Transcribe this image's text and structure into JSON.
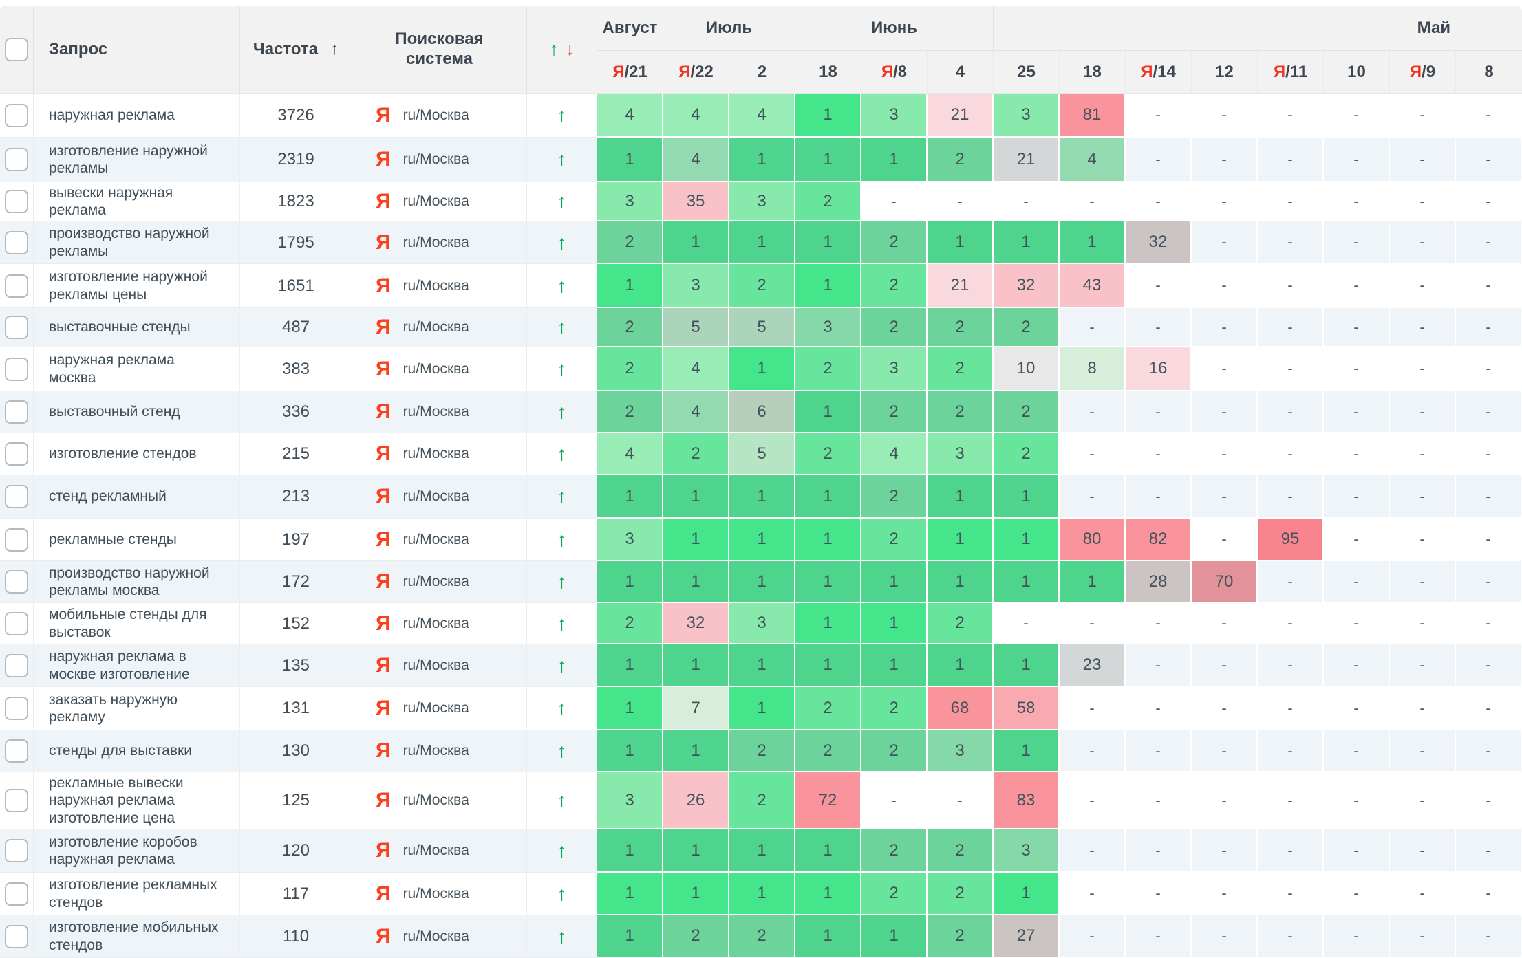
{
  "palette_note": "heatmap color tokens used by cells",
  "colors": {
    "accent_green": "#0ba653",
    "accent_red": "#ee4130",
    "yandex_red": "#fc3f1d",
    "heat_green_strong": "#45e58c",
    "heat_pink_strong": "#f8858d",
    "even_row_bg": "#eef4f8",
    "header_bg": "#f2f2f2"
  },
  "header": {
    "columns": {
      "query": "Запрос",
      "frequency": "Частота",
      "freq_sort_arrow": "↑",
      "engine": "Поисковая система",
      "trend_up": "↑",
      "trend_down": "↓"
    },
    "yandex_letter": "Я",
    "month_groups": [
      {
        "label": "Август",
        "colspan": 1,
        "offset": false
      },
      {
        "label": "Июль",
        "colspan": 2,
        "offset": false
      },
      {
        "label": "Июнь",
        "colspan": 3,
        "offset": false
      },
      {
        "label": "Май",
        "colspan": 8,
        "offset": true
      }
    ],
    "days": [
      {
        "ya": true,
        "day": "21"
      },
      {
        "ya": true,
        "day": "22"
      },
      {
        "ya": false,
        "day": "2"
      },
      {
        "ya": false,
        "day": "18"
      },
      {
        "ya": true,
        "day": "8"
      },
      {
        "ya": false,
        "day": "4"
      },
      {
        "ya": false,
        "day": "25"
      },
      {
        "ya": false,
        "day": "18"
      },
      {
        "ya": true,
        "day": "14"
      },
      {
        "ya": false,
        "day": "12"
      },
      {
        "ya": true,
        "day": "11"
      },
      {
        "ya": false,
        "day": "10"
      },
      {
        "ya": true,
        "day": "9"
      },
      {
        "ya": false,
        "day": "8"
      }
    ]
  },
  "rows": [
    {
      "query": "наружная реклама",
      "frequency": "3726",
      "engine": "ru/Москва",
      "trend": "↑",
      "h": 64,
      "cells": [
        "4:g4",
        "4:g4",
        "4:g4",
        "1:g1",
        "3:g3",
        "21:pk1",
        "3:g3",
        "81:pk4",
        "-",
        "-",
        "-",
        "-",
        "-",
        "-"
      ]
    },
    {
      "query": "изготовление наружной рекламы",
      "frequency": "2319",
      "engine": "ru/Москва",
      "trend": "↑",
      "h": 65,
      "cells": [
        "1:g1",
        "4:g4",
        "1:g1",
        "1:g1",
        "1:g1",
        "2:g2",
        "21:gray",
        "4:g4",
        "-",
        "-",
        "-",
        "-",
        "-",
        "-"
      ]
    },
    {
      "query": "вывески наружная реклама",
      "frequency": "1823",
      "engine": "ru/Москва",
      "trend": "↑",
      "h": 57,
      "cells": [
        "3:g3",
        "35:pk2",
        "3:g3",
        "2:g2",
        "-",
        "-",
        "-",
        "-",
        "-",
        "-",
        "-",
        "-",
        "-",
        "-"
      ]
    },
    {
      "query": "производство наружной рекламы",
      "frequency": "1795",
      "engine": "ru/Москва",
      "trend": "↑",
      "h": 62,
      "cells": [
        "2:g2",
        "1:g1",
        "1:g1",
        "1:g1",
        "2:g2",
        "1:g1",
        "1:g1",
        "1:g1",
        "32:gpk",
        "-",
        "-",
        "-",
        "-",
        "-"
      ]
    },
    {
      "query": "изготовление наружной рекламы цены",
      "frequency": "1651",
      "engine": "ru/Москва",
      "trend": "↑",
      "h": 64,
      "cells": [
        "1:g1",
        "3:g3",
        "2:g2",
        "1:g1",
        "2:g2",
        "21:pk1",
        "32:pk2",
        "43:pk2",
        "-",
        "-",
        "-",
        "-",
        "-",
        "-"
      ]
    },
    {
      "query": "выставочные стенды",
      "frequency": "487",
      "engine": "ru/Москва",
      "trend": "↑",
      "h": 57,
      "cells": [
        "2:g2",
        "5:g5",
        "5:g5",
        "3:g3",
        "2:g2",
        "2:g2",
        "2:g2",
        "-",
        "-",
        "-",
        "-",
        "-",
        "-",
        "-"
      ]
    },
    {
      "query": "наружная реклама москва",
      "frequency": "383",
      "engine": "ru/Москва",
      "trend": "↑",
      "h": 64,
      "cells": [
        "2:g2",
        "4:g4",
        "1:g1",
        "2:g2",
        "3:g3",
        "2:g2",
        "10:gray",
        "8:g7",
        "16:pk1",
        "-",
        "-",
        "-",
        "-",
        "-"
      ]
    },
    {
      "query": "выставочный стенд",
      "frequency": "336",
      "engine": "ru/Москва",
      "trend": "↑",
      "h": 61,
      "cells": [
        "2:g2",
        "4:g4",
        "6:g6",
        "1:g1",
        "2:g2",
        "2:g2",
        "2:g2",
        "-",
        "-",
        "-",
        "-",
        "-",
        "-",
        "-"
      ]
    },
    {
      "query": "изготовление стендов",
      "frequency": "215",
      "engine": "ru/Москва",
      "trend": "↑",
      "h": 61,
      "cells": [
        "4:g4",
        "2:g2",
        "5:g5",
        "2:g2",
        "4:g4",
        "3:g3",
        "2:g2",
        "-",
        "-",
        "-",
        "-",
        "-",
        "-",
        "-"
      ]
    },
    {
      "query": "стенд рекламный",
      "frequency": "213",
      "engine": "ru/Москва",
      "trend": "↑",
      "h": 63,
      "cells": [
        "1:g1",
        "1:g1",
        "1:g1",
        "1:g1",
        "2:g2",
        "1:g1",
        "1:g1",
        "-",
        "-",
        "-",
        "-",
        "-",
        "-",
        "-"
      ]
    },
    {
      "query": "рекламные стенды",
      "frequency": "197",
      "engine": "ru/Москва",
      "trend": "↑",
      "h": 62,
      "cells": [
        "3:g3",
        "1:g1",
        "1:g1",
        "1:g1",
        "2:g2",
        "1:g1",
        "1:g1",
        "80:pk4",
        "82:pk4",
        "-",
        "95:red",
        "-",
        "-",
        "-"
      ]
    },
    {
      "query": "производство наружной рекламы москва",
      "frequency": "172",
      "engine": "ru/Москва",
      "trend": "↑",
      "h": 61,
      "cells": [
        "1:g1",
        "1:g1",
        "1:g1",
        "1:g1",
        "1:g1",
        "1:g1",
        "1:g1",
        "1:g1",
        "28:gpk",
        "70:pk4",
        "-",
        "-",
        "-",
        "-"
      ]
    },
    {
      "query": "мобильные стенды для выставок",
      "frequency": "152",
      "engine": "ru/Москва",
      "trend": "↑",
      "h": 60,
      "cells": [
        "2:g2",
        "32:pk2",
        "3:g3",
        "1:g1",
        "1:g1",
        "2:g2",
        "-",
        "-",
        "-",
        "-",
        "-",
        "-",
        "-",
        "-"
      ]
    },
    {
      "query": "наружная реклама в москве изготовление",
      "frequency": "135",
      "engine": "ru/Москва",
      "trend": "↑",
      "h": 62,
      "cells": [
        "1:g1",
        "1:g1",
        "1:g1",
        "1:g1",
        "1:g1",
        "1:g1",
        "1:g1",
        "23:gray",
        "-",
        "-",
        "-",
        "-",
        "-",
        "-"
      ]
    },
    {
      "query": "заказать наружную рекламу",
      "frequency": "131",
      "engine": "ru/Москва",
      "trend": "↑",
      "h": 63,
      "cells": [
        "1:g1",
        "7:g7",
        "1:g1",
        "2:g2",
        "2:g2",
        "68:pk4",
        "58:pk3",
        "-",
        "-",
        "-",
        "-",
        "-",
        "-",
        "-"
      ]
    },
    {
      "query": "стенды для выставки",
      "frequency": "130",
      "engine": "ru/Москва",
      "trend": "↑",
      "h": 61,
      "cells": [
        "1:g1",
        "1:g1",
        "2:g2",
        "2:g2",
        "2:g2",
        "3:g3",
        "1:g1",
        "-",
        "-",
        "-",
        "-",
        "-",
        "-",
        "-"
      ]
    },
    {
      "query": "рекламные вывески наружная реклама изготовление цена",
      "frequency": "125",
      "engine": "ru/Москва",
      "trend": "↑",
      "h": 83,
      "cells": [
        "3:g3",
        "26:pk2",
        "2:g2",
        "72:pk4",
        "-",
        "-",
        "83:pk4",
        "-",
        "-",
        "-",
        "-",
        "-",
        "-",
        "-"
      ]
    },
    {
      "query": "изготовление коробов наружная реклама",
      "frequency": "120",
      "engine": "ru/Москва",
      "trend": "↑",
      "h": 63,
      "cells": [
        "1:g1",
        "1:g1",
        "1:g1",
        "1:g1",
        "2:g2",
        "2:g2",
        "3:g3",
        "-",
        "-",
        "-",
        "-",
        "-",
        "-",
        "-"
      ]
    },
    {
      "query": "изготовление рекламных стендов",
      "frequency": "117",
      "engine": "ru/Москва",
      "trend": "↑",
      "h": 62,
      "cells": [
        "1:g1",
        "1:g1",
        "1:g1",
        "1:g1",
        "2:g2",
        "2:g2",
        "1:g1",
        "-",
        "-",
        "-",
        "-",
        "-",
        "-",
        "-"
      ]
    },
    {
      "query": "изготовление мобильных стендов",
      "frequency": "110",
      "engine": "ru/Москва",
      "trend": "↑",
      "h": 62,
      "cells": [
        "1:g1",
        "2:g2",
        "2:g2",
        "1:g1",
        "1:g1",
        "2:g2",
        "27:gpk",
        "-",
        "-",
        "-",
        "-",
        "-",
        "-",
        "-"
      ]
    }
  ]
}
